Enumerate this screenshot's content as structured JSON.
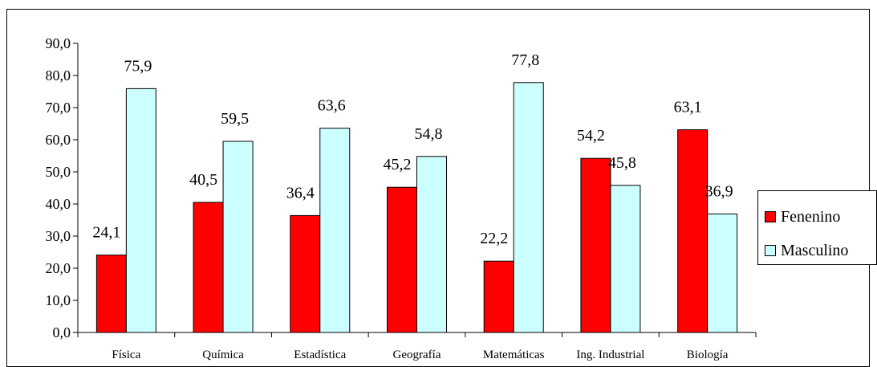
{
  "chart_data": {
    "type": "bar",
    "categories": [
      "Física",
      "Química",
      "Estadística",
      "Geografía",
      "Matemáticas",
      "Ing. Industrial",
      "Biología"
    ],
    "series": [
      {
        "name": "Fenenino",
        "values": [
          24.1,
          40.5,
          36.4,
          45.2,
          22.2,
          54.2,
          63.1
        ],
        "labels": [
          "24,1",
          "40,5",
          "36,4",
          "45,2",
          "22,2",
          "54,2",
          "63,1"
        ],
        "color": "#ff0000"
      },
      {
        "name": "Masculino",
        "values": [
          75.9,
          59.5,
          63.6,
          54.8,
          77.8,
          45.8,
          36.9
        ],
        "labels": [
          "75,9",
          "59,5",
          "63,6",
          "54,8",
          "77,8",
          "45,8",
          "36,9"
        ],
        "color": "#ccffff"
      }
    ],
    "ylim": [
      0,
      90
    ],
    "yticks": [
      "0,0",
      "10,0",
      "20,0",
      "30,0",
      "40,0",
      "50,0",
      "60,0",
      "70,0",
      "80,0",
      "90,0"
    ],
    "grid": false,
    "legend_position": "right"
  }
}
